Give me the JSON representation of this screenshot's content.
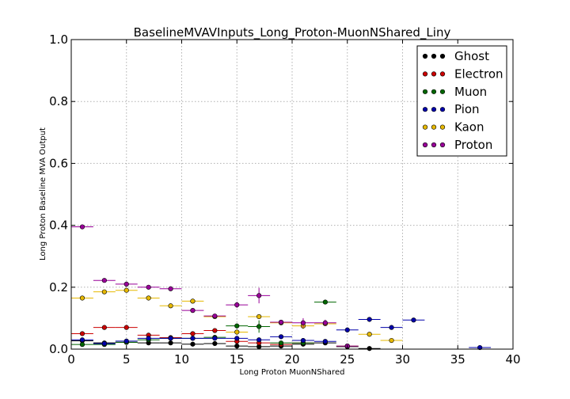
{
  "chart_data": {
    "type": "scatter",
    "title": "BaselineMVAVInputs_Long_Proton-MuonNShared_Liny",
    "xlabel": "Long Proton MuonNShared",
    "ylabel": "Long Proton Baseline MVA Output",
    "xlim": [
      0,
      40
    ],
    "ylim": [
      0,
      1.0
    ],
    "x_ticks": [
      "0",
      "5",
      "10",
      "15",
      "20",
      "25",
      "30",
      "35",
      "40"
    ],
    "y_ticks": [
      "0.0",
      "0.2",
      "0.4",
      "0.6",
      "0.8",
      "1.0"
    ],
    "grid": true,
    "legend_position": "top-right",
    "bin_halfwidth": 1,
    "series": [
      {
        "name": "Ghost",
        "color": "#000000",
        "points": [
          [
            1,
            0.027,
            0
          ],
          [
            3,
            0.02,
            0
          ],
          [
            5,
            0.022,
            0
          ],
          [
            7,
            0.02,
            0
          ],
          [
            9,
            0.02,
            0
          ],
          [
            11,
            0.016,
            0
          ],
          [
            13,
            0.018,
            0
          ],
          [
            15,
            0.01,
            0
          ],
          [
            17,
            0.008,
            0
          ],
          [
            19,
            0.01,
            0
          ],
          [
            21,
            0.016,
            0
          ],
          [
            23,
            0.02,
            0
          ],
          [
            25,
            0.008,
            0
          ],
          [
            27,
            0.002,
            0
          ]
        ]
      },
      {
        "name": "Electron",
        "color": "#cc0000",
        "points": [
          [
            1,
            0.05,
            0
          ],
          [
            3,
            0.07,
            0
          ],
          [
            5,
            0.07,
            0
          ],
          [
            7,
            0.045,
            0
          ],
          [
            9,
            0.037,
            0
          ],
          [
            11,
            0.05,
            0
          ],
          [
            13,
            0.06,
            0
          ],
          [
            15,
            0.025,
            0
          ],
          [
            17,
            0.02,
            0
          ],
          [
            19,
            0.015,
            0
          ],
          [
            21,
            0.02,
            0
          ]
        ]
      },
      {
        "name": "Muon",
        "color": "#006600",
        "points": [
          [
            1,
            0.015,
            0
          ],
          [
            3,
            0.015,
            0
          ],
          [
            5,
            0.022,
            0
          ],
          [
            7,
            0.03,
            0
          ],
          [
            9,
            0.035,
            0
          ],
          [
            11,
            0.035,
            0
          ],
          [
            13,
            0.038,
            0
          ],
          [
            15,
            0.075,
            0.008
          ],
          [
            17,
            0.073,
            0.02
          ],
          [
            19,
            0.02,
            0
          ],
          [
            21,
            0.02,
            0
          ],
          [
            23,
            0.152,
            0
          ]
        ]
      },
      {
        "name": "Pion",
        "color": "#0000aa",
        "points": [
          [
            1,
            0.03,
            0
          ],
          [
            3,
            0.018,
            0
          ],
          [
            5,
            0.026,
            0
          ],
          [
            7,
            0.035,
            0
          ],
          [
            9,
            0.035,
            0
          ],
          [
            11,
            0.035,
            0
          ],
          [
            13,
            0.035,
            0
          ],
          [
            15,
            0.035,
            0
          ],
          [
            17,
            0.03,
            0
          ],
          [
            19,
            0.04,
            0
          ],
          [
            21,
            0.028,
            0
          ],
          [
            23,
            0.025,
            0
          ],
          [
            25,
            0.062,
            0.008
          ],
          [
            27,
            0.096,
            0
          ],
          [
            29,
            0.07,
            0
          ],
          [
            31,
            0.094,
            0
          ],
          [
            37,
            0.005,
            0
          ]
        ]
      },
      {
        "name": "Kaon",
        "color": "#e6b800",
        "points": [
          [
            1,
            0.165,
            0
          ],
          [
            3,
            0.185,
            0
          ],
          [
            5,
            0.19,
            0
          ],
          [
            7,
            0.165,
            0
          ],
          [
            9,
            0.14,
            0
          ],
          [
            11,
            0.155,
            0
          ],
          [
            13,
            0.105,
            0
          ],
          [
            15,
            0.055,
            0
          ],
          [
            17,
            0.105,
            0
          ],
          [
            19,
            0.085,
            0
          ],
          [
            21,
            0.075,
            0.01
          ],
          [
            23,
            0.082,
            0
          ],
          [
            25,
            0.01,
            0
          ],
          [
            27,
            0.048,
            0
          ],
          [
            29,
            0.028,
            0
          ]
        ]
      },
      {
        "name": "Proton",
        "color": "#990099",
        "points": [
          [
            1,
            0.395,
            0
          ],
          [
            3,
            0.222,
            0
          ],
          [
            5,
            0.21,
            0
          ],
          [
            7,
            0.2,
            0
          ],
          [
            9,
            0.195,
            0
          ],
          [
            11,
            0.125,
            0
          ],
          [
            13,
            0.107,
            0
          ],
          [
            15,
            0.143,
            0.01
          ],
          [
            17,
            0.173,
            0.025
          ],
          [
            19,
            0.087,
            0
          ],
          [
            21,
            0.085,
            0.015
          ],
          [
            23,
            0.085,
            0.01
          ],
          [
            25,
            0.01,
            0
          ]
        ]
      }
    ]
  }
}
